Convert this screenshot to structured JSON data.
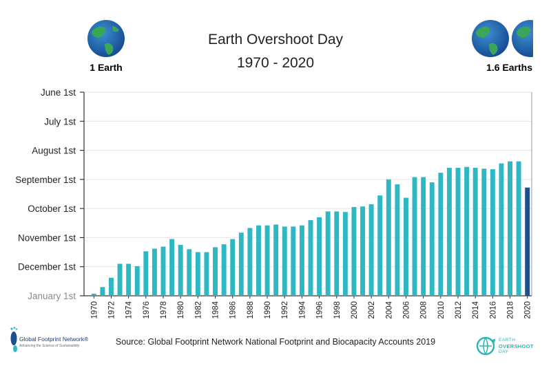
{
  "header": {
    "title_line1": "Earth Overshoot Day",
    "title_line2": "1970 - 2020",
    "left_label": "1 Earth",
    "right_label": "1.6 Earths",
    "globe_icon": "earth-globe-icon"
  },
  "footer": {
    "source": "Source: Global Footprint Network National Footprint and Biocapacity Accounts 2019",
    "gfn_name": "Global Footprint Network®",
    "gfn_tagline": "Advancing the Science of Sustainability",
    "eod_line1": "EARTH",
    "eod_line2": "OVERSHOOT",
    "eod_line3": "DAY"
  },
  "colors": {
    "bar": "#2fb8c3",
    "bar_highlight": "#1f4e8c",
    "axis": "#333333",
    "grid": "#e3e3e3"
  },
  "chart_data": {
    "type": "bar",
    "y_tick_labels": [
      "June 1st",
      "July 1st",
      "August 1st",
      "September 1st",
      "October 1st",
      "November 1st",
      "December 1st",
      "January 1st"
    ],
    "y_axis_note": "value = month from June 1st = 0 (top) to January 1st = 7 (bottom); bars extend upward from January 1st",
    "ylim": [
      0,
      7
    ],
    "x_tick_labels": [
      "1970",
      "1972",
      "1974",
      "1976",
      "1978",
      "1980",
      "1982",
      "1984",
      "1986",
      "1988",
      "1990",
      "1992",
      "1994",
      "1996",
      "1998",
      "2000",
      "2002",
      "2004",
      "2006",
      "2008",
      "2010",
      "2012",
      "2014",
      "2016",
      "2018",
      "2020"
    ],
    "categories": [
      1970,
      1971,
      1972,
      1973,
      1974,
      1975,
      1976,
      1977,
      1978,
      1979,
      1980,
      1981,
      1982,
      1983,
      1984,
      1985,
      1986,
      1987,
      1988,
      1989,
      1990,
      1991,
      1992,
      1993,
      1994,
      1995,
      1996,
      1997,
      1998,
      1999,
      2000,
      2001,
      2002,
      2003,
      2004,
      2005,
      2006,
      2007,
      2008,
      2009,
      2010,
      2011,
      2012,
      2013,
      2014,
      2015,
      2016,
      2017,
      2018,
      2019,
      2020
    ],
    "values": [
      6.93,
      6.7,
      6.38,
      5.9,
      5.9,
      5.98,
      5.47,
      5.38,
      5.31,
      5.05,
      5.25,
      5.4,
      5.5,
      5.5,
      5.33,
      5.23,
      5.05,
      4.83,
      4.67,
      4.58,
      4.58,
      4.55,
      4.62,
      4.62,
      4.58,
      4.4,
      4.3,
      4.1,
      4.1,
      4.12,
      3.95,
      3.93,
      3.85,
      3.55,
      3.0,
      3.17,
      3.63,
      2.92,
      2.92,
      3.1,
      2.77,
      2.6,
      2.6,
      2.57,
      2.6,
      2.63,
      2.65,
      2.45,
      2.38,
      2.38,
      3.28
    ],
    "highlight_category": 2020,
    "grid": "horizontal"
  }
}
